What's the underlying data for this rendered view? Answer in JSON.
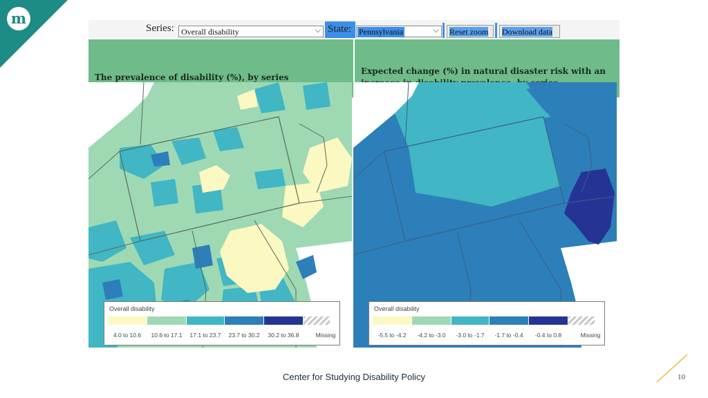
{
  "toolbar": {
    "series_label": "Series:",
    "series_value": "Overall disability",
    "state_label": "State:",
    "state_value": "Pennsylvania",
    "reset_zoom": "Reset zoom",
    "download_data": "Download data"
  },
  "panels": [
    {
      "title_line1": "The prevalence of disability (%), by series",
      "legend_title": "Overall disability",
      "legend_items": [
        "4.0 to 10.6",
        "10.6 to 17.1",
        "17.1 to 23.7",
        "23.7 to 30.2",
        "30.2 to 36.8",
        "Missing"
      ],
      "legend_colors": [
        "#fbf8c2",
        "#9fd9b3",
        "#41b6c4",
        "#2c7fb8",
        "#253494",
        "missing-hatch"
      ]
    },
    {
      "title_line1": "Expected change (%) in natural disaster risk with an",
      "title_line2": "increase in disability prevalence, by series",
      "legend_title": "Overall disability",
      "legend_items": [
        "-5.5 to -4.2",
        "-4.2 to -3.0",
        "-3.0 to -1.7",
        "-1.7 to -0.4",
        "-0.4 to 0.8",
        "Missing"
      ],
      "legend_colors": [
        "#fbf8c2",
        "#9fd9b3",
        "#41b6c4",
        "#2c7fb8",
        "#253494",
        "missing-hatch"
      ]
    }
  ],
  "icons": {
    "brand_logo": "m-logo-icon",
    "select_arrow": "chevron-down-icon"
  },
  "footer": {
    "org": "Center for Studying Disability Policy",
    "page_number": "10"
  }
}
